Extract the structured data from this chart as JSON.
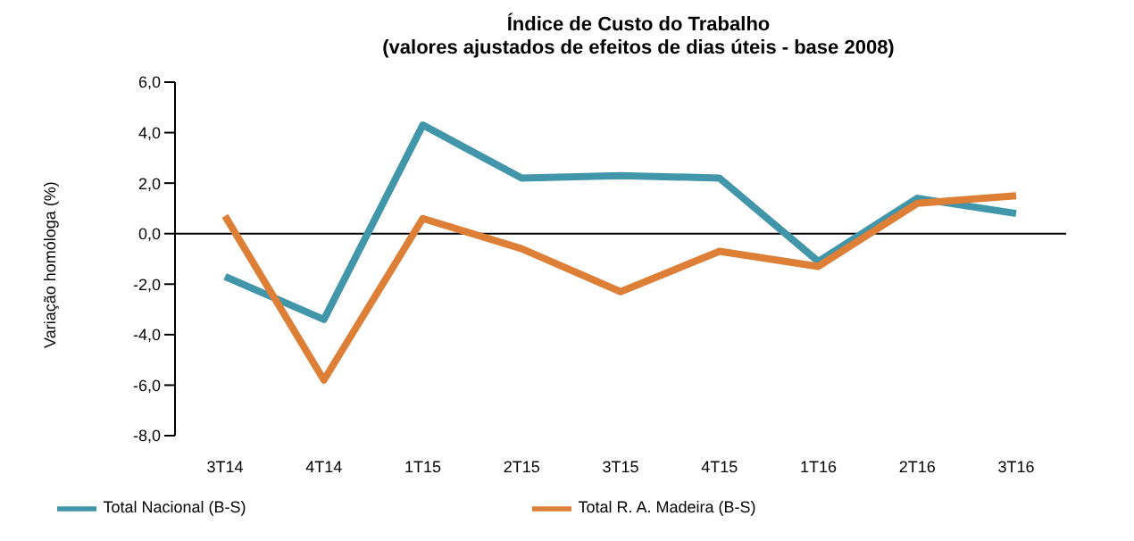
{
  "chart_data": {
    "type": "line",
    "title": "Índice de Custo do Trabalho",
    "subtitle": "(valores ajustados de efeitos de dias úteis - base 2008)",
    "ylabel": "Variação homóloga (%)",
    "categories": [
      "3T14",
      "4T14",
      "1T15",
      "2T15",
      "3T15",
      "4T15",
      "1T16",
      "2T16",
      "3T16"
    ],
    "series": [
      {
        "name": "Total Nacional (B-S)",
        "color": "#4196aa",
        "values": [
          -1.7,
          -3.4,
          4.3,
          2.2,
          2.3,
          2.2,
          -1.1,
          1.4,
          0.8
        ]
      },
      {
        "name": "Total R. A. Madeira (B-S)",
        "color": "#dd7f37",
        "values": [
          0.7,
          -5.8,
          0.6,
          -0.6,
          -2.3,
          -0.7,
          -1.3,
          1.2,
          1.5
        ]
      }
    ],
    "ylim": [
      -8,
      6
    ],
    "yticks": [
      {
        "value": -8,
        "label": "-8,0"
      },
      {
        "value": -6,
        "label": "-6,0"
      },
      {
        "value": -4,
        "label": "-4,0"
      },
      {
        "value": -2,
        "label": "-2,0"
      },
      {
        "value": 0,
        "label": "0,0"
      },
      {
        "value": 2,
        "label": "2,0"
      },
      {
        "value": 4,
        "label": "4,0"
      },
      {
        "value": 6,
        "label": "6,0"
      }
    ],
    "ref_lines": [
      {
        "axis": "y",
        "value": 0,
        "color": "#000000"
      }
    ],
    "grid": false,
    "legend": "bottom",
    "marker": "none",
    "line_style": "solid"
  }
}
